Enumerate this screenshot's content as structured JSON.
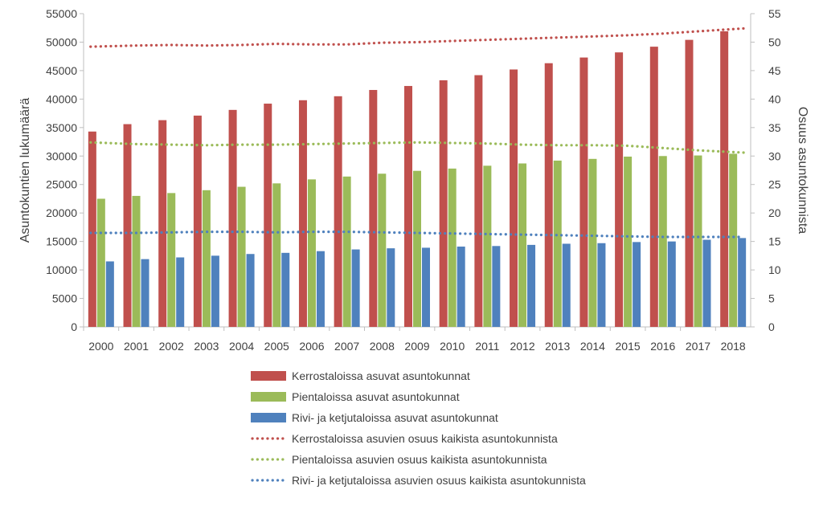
{
  "chart_data": {
    "type": "bar",
    "categories": [
      "2000",
      "2001",
      "2002",
      "2003",
      "2004",
      "2005",
      "2006",
      "2007",
      "2008",
      "2009",
      "2010",
      "2011",
      "2012",
      "2013",
      "2014",
      "2015",
      "2016",
      "2017",
      "2018"
    ],
    "ylabel": "Asuntokuntien lukumäärä",
    "y2label": "Osuus asuntokunnista",
    "ylim": [
      0,
      55000
    ],
    "y2lim": [
      0,
      55
    ],
    "yticks": [
      "0",
      "5000",
      "10000",
      "15000",
      "20000",
      "25000",
      "30000",
      "35000",
      "40000",
      "45000",
      "50000",
      "55000"
    ],
    "y2ticks": [
      "0",
      "5",
      "10",
      "15",
      "20",
      "25",
      "30",
      "35",
      "40",
      "45",
      "50",
      "55"
    ],
    "grid": false,
    "legend_position": "bottom",
    "bar_series": [
      {
        "name": "Kerrostaloissa asuvat asuntokunnat",
        "color": "#c0504d",
        "values": [
          34300,
          35600,
          36300,
          37100,
          38100,
          39200,
          39800,
          40500,
          41600,
          42300,
          43300,
          44200,
          45200,
          46300,
          47300,
          48200,
          49200,
          50400,
          51900
        ]
      },
      {
        "name": "Pientaloissa asuvat asuntokunnat",
        "color": "#9bbb59",
        "values": [
          22500,
          23000,
          23500,
          24000,
          24600,
          25200,
          25900,
          26400,
          26900,
          27400,
          27800,
          28300,
          28700,
          29200,
          29500,
          29900,
          30000,
          30100,
          30400
        ]
      },
      {
        "name": "Rivi- ja ketjutaloissa asuvat asuntokunnat",
        "color": "#4f81bd",
        "values": [
          11500,
          11900,
          12200,
          12500,
          12800,
          13000,
          13300,
          13600,
          13800,
          13900,
          14100,
          14200,
          14400,
          14600,
          14700,
          14900,
          15000,
          15300,
          15600
        ]
      }
    ],
    "line_series": [
      {
        "name": "Kerrostaloissa asuvien osuus kaikista asuntokunnista",
        "color": "#c0504d",
        "values": [
          49.2,
          49.4,
          49.5,
          49.4,
          49.5,
          49.7,
          49.6,
          49.6,
          49.9,
          50.0,
          50.2,
          50.4,
          50.6,
          50.8,
          51.0,
          51.2,
          51.5,
          51.9,
          52.4
        ]
      },
      {
        "name": "Pientaloissa asuvien osuus kaikista asuntokunnista",
        "color": "#9bbb59",
        "values": [
          32.4,
          32.1,
          32.0,
          31.9,
          32.0,
          32.0,
          32.1,
          32.2,
          32.3,
          32.4,
          32.3,
          32.2,
          32.0,
          31.9,
          31.9,
          31.8,
          31.4,
          31.0,
          30.6
        ]
      },
      {
        "name": "Rivi- ja ketjutaloissa asuvien osuus kaikista asuntokunnista",
        "color": "#4f81bd",
        "values": [
          16.5,
          16.5,
          16.6,
          16.7,
          16.7,
          16.6,
          16.7,
          16.7,
          16.6,
          16.5,
          16.4,
          16.3,
          16.2,
          16.1,
          16.0,
          15.9,
          15.8,
          15.8,
          15.8
        ]
      }
    ]
  }
}
